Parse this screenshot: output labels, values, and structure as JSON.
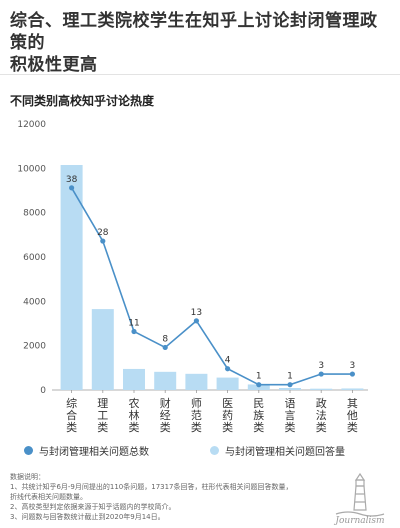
{
  "header": {
    "title_line1": "综合、理工类院校学生在知乎上讨论封闭管理政策的",
    "title_line2": "积极性更高"
  },
  "chart_data": {
    "type": "bar+line",
    "title": "不同类别高校知乎讨论热度",
    "categories": [
      "综合类",
      "理工类",
      "农林类",
      "财经类",
      "师范类",
      "医药类",
      "民族类",
      "语言类",
      "政法类",
      "其他类"
    ],
    "ylim": [
      0,
      12000
    ],
    "yticks": [
      0,
      2000,
      4000,
      6000,
      8000,
      10000,
      12000
    ],
    "grid": false,
    "series": [
      {
        "name": "与封闭管理相关问题回答量",
        "type": "bar",
        "values": [
          10150,
          3650,
          950,
          820,
          730,
          560,
          250,
          90,
          60,
          70
        ],
        "color": "#b8dcf3"
      },
      {
        "name": "与封闭管理相关问题总数",
        "type": "line",
        "values": [
          38,
          28,
          11,
          8,
          13,
          4,
          1,
          1,
          3,
          3
        ],
        "labels": [
          "38",
          "28",
          "11",
          "8",
          "13",
          "4",
          "1",
          "1",
          "3",
          "3"
        ],
        "color": "#4a90c8"
      }
    ],
    "legend_position": "bottom"
  },
  "legend": {
    "line_label": "与封闭管理相关问题总数",
    "bar_label": "与封闭管理相关问题回答量",
    "line_color": "#4a90c8",
    "bar_color": "#b8dcf3"
  },
  "notes": {
    "heading": "数据说明：",
    "line1": "1、共统计知乎6月-9月间提出的110条问题，17317条回答，柱形代表相关问题回答数量，",
    "line2": "折线代表相关问题数量。",
    "line3": "2、高校类型判定依据来源于知乎话题内的学校简介。",
    "line4": "3、问题数与回答数统计截止到2020年9月14日。"
  },
  "logo": {
    "text": "Journalism",
    "icon": "lighthouse-icon"
  }
}
